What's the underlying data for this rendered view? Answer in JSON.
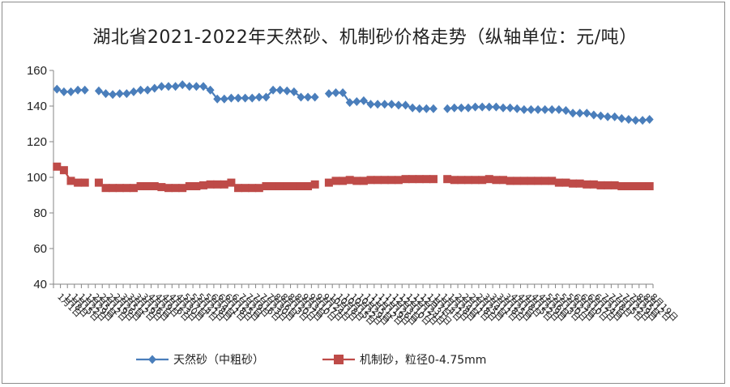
{
  "chart_data": {
    "type": "line",
    "title": "湖北省2021-2022年天然砂、机制砂价格走势（纵轴单位：元/吨）",
    "xlabel": "",
    "ylabel": "",
    "ylim": [
      40,
      160
    ],
    "yticks": [
      40,
      60,
      80,
      100,
      120,
      140,
      160
    ],
    "grid": false,
    "legend_position": "bottom",
    "categories": [
      "1月1日",
      "1月8日",
      "1月15日",
      "1月22日",
      "1月29日",
      "2月5日",
      "2月12日",
      "2月19日",
      "2月26日",
      "3月5日",
      "3月12日",
      "3月19日",
      "3月26日",
      "4月2日",
      "4月9日",
      "4月16日",
      "4月23日",
      "4月30日",
      "5月7日",
      "5月14日",
      "5月21日",
      "5月28日",
      "6月4日",
      "6月11日",
      "6月18日",
      "6月25日",
      "7月2日",
      "7月9日",
      "7月16日",
      "7月23日",
      "7月30日",
      "8月6日",
      "8月13日",
      "8月20日",
      "8月27日",
      "9月3日",
      "9月10日",
      "9月17日",
      "9月24日",
      "10月1日",
      "10月8日",
      "10月15日",
      "10月22日",
      "10月29日",
      "11月5日",
      "11月12日",
      "11月19日",
      "11月26日",
      "12月3日",
      "12月10日",
      "12月17日",
      "12月24日",
      "12月31日",
      "1月7日",
      "1月14日",
      "1月21日",
      "1月28日",
      "2月4日",
      "2月11日",
      "2月18日",
      "2月25日",
      "3月4日",
      "3月11日",
      "3月18日",
      "3月25日",
      "4月1日",
      "4月8日",
      "4月15日",
      "4月22日",
      "4月29日",
      "5月6日",
      "5月13日",
      "5月20日",
      "5月27日",
      "6月3日",
      "6月10日",
      "6月17日",
      "6月24日",
      "7月1日",
      "7月8日",
      "7月15日",
      "7月22日",
      "7月29日",
      "8月5日",
      "8月12日",
      "8月19日"
    ],
    "series": [
      {
        "name": "天然砂（中粗砂）",
        "color": "#4a7ebb",
        "marker": "diamond",
        "values": [
          149.5,
          148,
          148,
          149,
          149,
          null,
          148.5,
          147,
          146.5,
          147,
          147,
          148,
          149,
          149,
          150,
          151,
          151,
          151,
          152,
          151,
          151,
          151,
          149,
          144,
          144,
          144.5,
          144.5,
          144.5,
          144.5,
          145,
          145,
          149,
          149,
          148.5,
          148,
          145,
          145,
          145,
          null,
          147,
          147.5,
          147.5,
          142,
          142.5,
          143,
          141,
          141,
          141,
          141,
          140.5,
          140.5,
          139,
          138.5,
          138.5,
          138.5,
          null,
          138.5,
          139,
          139,
          139,
          139.5,
          139.5,
          139.5,
          139.5,
          139,
          139,
          138.5,
          138,
          138,
          138,
          138,
          138,
          138,
          137.5,
          136,
          136,
          136,
          135,
          134.5,
          134,
          134,
          133,
          132.5,
          132,
          132,
          132.5
        ]
      },
      {
        "name": "机制砂，粒径0-4.75mm",
        "color": "#be4b48",
        "marker": "square",
        "values": [
          106,
          104,
          98,
          97,
          97,
          null,
          97,
          94,
          94,
          94,
          94,
          94,
          95,
          95,
          95,
          94.5,
          94,
          94,
          94,
          95,
          95,
          95.5,
          96,
          96,
          96,
          97,
          94,
          94,
          94,
          94,
          95,
          95,
          95,
          95,
          95,
          95,
          95,
          96,
          null,
          97,
          98,
          98,
          98.5,
          98,
          98,
          98.5,
          98.5,
          98.5,
          98.5,
          98.5,
          99,
          99,
          99,
          99,
          99,
          null,
          99,
          98.5,
          98.5,
          98.5,
          98.5,
          98.5,
          99,
          98.5,
          98.5,
          98,
          98,
          98,
          98,
          98,
          98,
          98,
          97,
          97,
          96.5,
          96.5,
          96,
          96,
          95.5,
          95.5,
          95.5,
          95,
          95,
          95,
          95,
          95
        ]
      }
    ]
  }
}
